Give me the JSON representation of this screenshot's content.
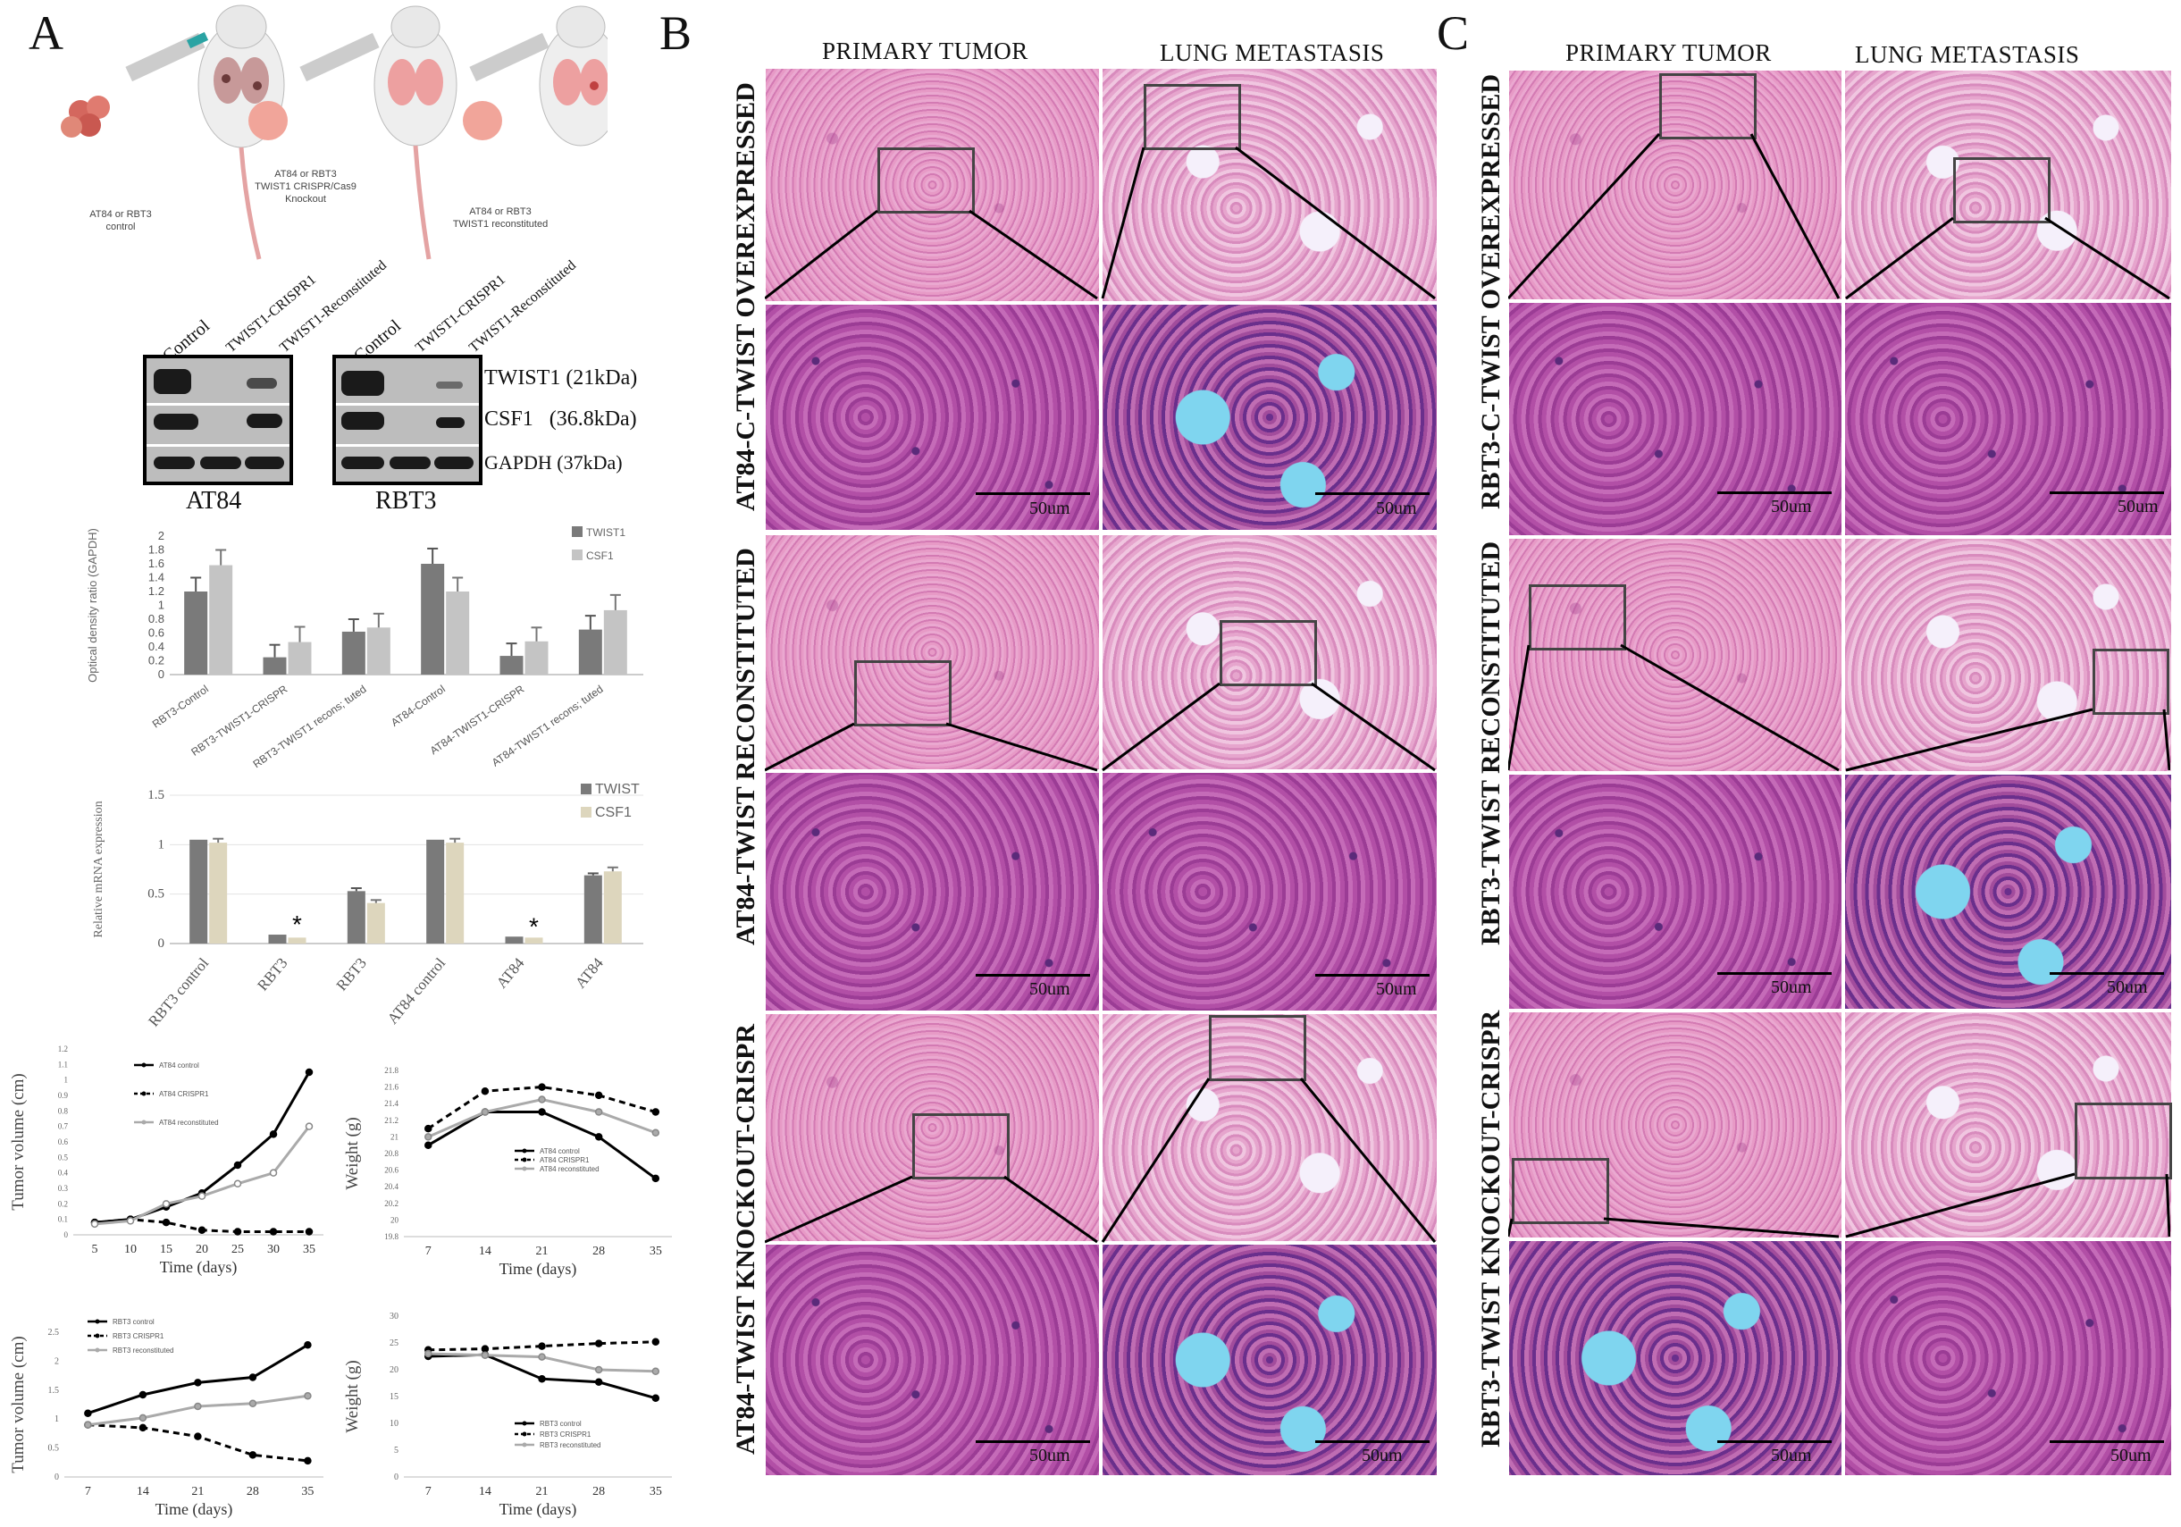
{
  "panels": {
    "A": "A",
    "B": "B",
    "C": "C"
  },
  "schematic": {
    "mouse_labels": [
      [
        "AT84 or RBT3",
        "control"
      ],
      [
        "AT84 or RBT3",
        "TWIST1 CRISPR/Cas9",
        "Knockout"
      ],
      [
        "AT84 or RBT3",
        "TWIST1 reconstituted"
      ]
    ]
  },
  "western": {
    "lane_labels": [
      "Control",
      "TWIST1-CRISPR1",
      "TWIST1-Reconstituted"
    ],
    "band_labels": [
      "TWIST1 (21kDa)",
      "CSF1   (36.8kDa)",
      "GAPDH (37kDa)"
    ],
    "cell_lines": [
      "AT84",
      "RBT3"
    ]
  },
  "chart_data": [
    {
      "type": "bar",
      "ylabel": "Optical density ratio (GAPDH)",
      "categories": [
        "RBT3-Control",
        "RBT3-TWIST1-CRISPR",
        "RBT3-TWIST1 recons; tuted",
        "AT84-Control",
        "AT84-TWIST1-CRISPR",
        "AT84-TWIST1 recons; tuted"
      ],
      "series": [
        {
          "name": "TWIST1",
          "color": "#7a7a7a",
          "values": [
            1.2,
            0.25,
            0.62,
            1.6,
            0.27,
            0.65
          ],
          "err": [
            0.2,
            0.18,
            0.18,
            0.22,
            0.18,
            0.2
          ]
        },
        {
          "name": "CSF1",
          "color": "#c4c4c4",
          "values": [
            1.58,
            0.47,
            0.68,
            1.2,
            0.48,
            0.93
          ],
          "err": [
            0.22,
            0.22,
            0.2,
            0.2,
            0.2,
            0.22
          ]
        }
      ],
      "ylim": [
        0,
        2
      ],
      "yticks": [
        "0",
        "0.2",
        "0.4",
        "0.6",
        "0.8",
        "1",
        "1.2",
        "1.4",
        "1.6",
        "1.8",
        "2"
      ]
    },
    {
      "type": "bar",
      "ylabel": "Relative mRNA expression",
      "categories": [
        "RBT3 control",
        "RBT3",
        "RBT3",
        "AT84 control",
        "AT84",
        "AT84"
      ],
      "series": [
        {
          "name": "TWIST",
          "color": "#7a7a7a",
          "values": [
            1.05,
            0.09,
            0.53,
            1.05,
            0.07,
            0.69
          ],
          "err": [
            0.0,
            0.0,
            0.03,
            0.0,
            0.0,
            0.02
          ]
        },
        {
          "name": "CSF1",
          "color": "#ddd6bd",
          "values": [
            1.02,
            0.06,
            0.41,
            1.02,
            0.06,
            0.73
          ],
          "err": [
            0.04,
            0.0,
            0.03,
            0.04,
            0.0,
            0.04
          ]
        }
      ],
      "ylim": [
        0,
        1.5
      ],
      "yticks": [
        "0",
        "0.5",
        "1",
        "1.5"
      ],
      "stars": [
        "*",
        "*"
      ]
    },
    {
      "type": "line",
      "ylabel": "Tumor volume (cm)",
      "xlabel": "Time (days)",
      "x": [
        5,
        10,
        15,
        20,
        25,
        30,
        35
      ],
      "ylim": [
        0,
        1.2
      ],
      "yticks": [
        "0",
        "0.1",
        "0.2",
        "0.3",
        "0.4",
        "0.5",
        "0.6",
        "0.7",
        "0.8",
        "0.9",
        "1",
        "1.1",
        "1.2"
      ],
      "series": [
        {
          "name": "AT84 control",
          "style": "solid",
          "color": "#000000",
          "values": [
            0.08,
            0.1,
            0.18,
            0.27,
            0.45,
            0.65,
            1.05
          ]
        },
        {
          "name": "AT84 CRISPR1",
          "style": "dashed",
          "color": "#000000",
          "values": [
            0.08,
            0.1,
            0.08,
            0.03,
            0.02,
            0.02,
            0.02
          ]
        },
        {
          "name": "AT84 reconstituted",
          "style": "solid",
          "color": "#aaaaaa",
          "values": [
            0.07,
            0.09,
            0.2,
            0.25,
            0.33,
            0.4,
            0.7
          ]
        }
      ]
    },
    {
      "type": "line",
      "ylabel": "Weight (g)",
      "xlabel": "Time (days)",
      "x": [
        7,
        14,
        21,
        28,
        35
      ],
      "ylim": [
        19.8,
        21.8
      ],
      "yticks": [
        "19.8",
        "20",
        "20.2",
        "20.4",
        "20.6",
        "20.8",
        "21",
        "21.2",
        "21.4",
        "21.6",
        "21.8"
      ],
      "series": [
        {
          "name": "AT84 control",
          "style": "solid",
          "color": "#000000",
          "values": [
            20.9,
            21.3,
            21.3,
            21.0,
            20.5
          ]
        },
        {
          "name": "AT84 CRISPR1",
          "style": "dashed",
          "color": "#000000",
          "values": [
            21.1,
            21.55,
            21.6,
            21.5,
            21.3
          ]
        },
        {
          "name": "AT84 reconstituted",
          "style": "solid",
          "color": "#aaaaaa",
          "values": [
            21.0,
            21.3,
            21.45,
            21.3,
            21.05
          ]
        }
      ]
    },
    {
      "type": "line",
      "ylabel": "Tumor volume (cm)",
      "xlabel": "Time (days)",
      "x": [
        7,
        14,
        21,
        28,
        35
      ],
      "ylim": [
        0,
        2.5
      ],
      "yticks": [
        "0",
        "0.5",
        "1",
        "1.5",
        "2",
        "2.5"
      ],
      "series": [
        {
          "name": "RBT3 control",
          "style": "solid",
          "color": "#000000",
          "values": [
            1.1,
            1.42,
            1.63,
            1.72,
            2.28
          ]
        },
        {
          "name": "RBT3 CRISPR1",
          "style": "dashed",
          "color": "#000000",
          "values": [
            0.9,
            0.85,
            0.7,
            0.38,
            0.28
          ]
        },
        {
          "name": "RBT3 reconstituted",
          "style": "solid",
          "color": "#aaaaaa",
          "values": [
            0.9,
            1.02,
            1.22,
            1.27,
            1.4
          ]
        }
      ]
    },
    {
      "type": "line",
      "ylabel": "Weight (g)",
      "xlabel": "Time (days)",
      "x": [
        7,
        14,
        21,
        28,
        35
      ],
      "ylim": [
        0,
        30
      ],
      "yticks": [
        "0",
        "5",
        "10",
        "15",
        "20",
        "25",
        "30"
      ],
      "series": [
        {
          "name": "RBT3 control",
          "style": "solid",
          "color": "#000000",
          "values": [
            22.5,
            22.8,
            18.3,
            17.7,
            14.7
          ]
        },
        {
          "name": "RBT3 CRISPR1",
          "style": "dashed",
          "color": "#000000",
          "values": [
            23.7,
            23.9,
            24.4,
            24.9,
            25.2
          ]
        },
        {
          "name": "RBT3 reconstituted",
          "style": "solid",
          "color": "#aaaaaa",
          "values": [
            23.0,
            22.7,
            22.4,
            20.0,
            19.7
          ]
        }
      ]
    }
  ],
  "histology": {
    "B": {
      "col_heads": [
        "PRIMARY TUMOR",
        "LUNG METASTASIS"
      ],
      "row_labels": [
        "AT84-C-TWIST OVEREXPRESSED",
        "AT84-TWIST RECONSTITUTED",
        "AT84-TWIST KNOCKOUT-CRISPR"
      ]
    },
    "C": {
      "col_heads": [
        "PRIMARY TUMOR",
        "LUNG METASTASIS"
      ],
      "row_labels": [
        "RBT3-C-TWIST OVEREXPRESSED",
        "RBT3-TWIST RECONSTITUTED",
        "RBT3-TWIST KNOCKOUT-CRISPR"
      ]
    },
    "scale_text": "50um"
  }
}
